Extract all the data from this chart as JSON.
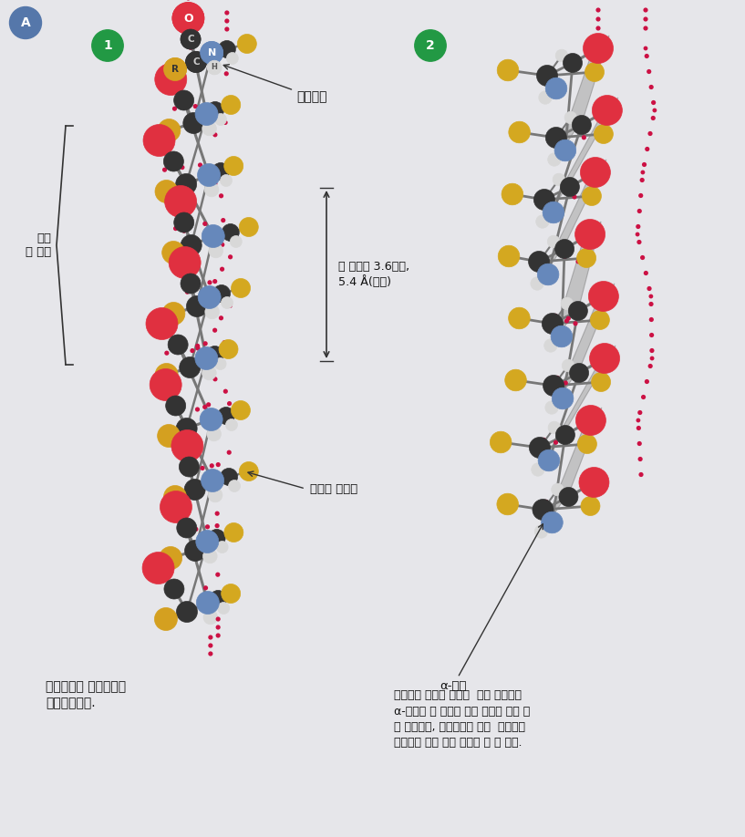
{
  "bg_color": "#e6e6ea",
  "panel1_caption": "수소결합은 나선구조를\n안정화시킨다.",
  "panel2_caption": "펩타이드 평면은 나선과  대략 평행이며\nα-탄소가 이 평면의 경첩 역할을 하고 있\n는 형태인데, 나선구조는 이런  펩타이드\n평면들이 쌓여 있는 배열로 볼 수 있다.",
  "label_H_bond": "수소결합",
  "label_turn": "나선\n한 바퀴",
  "label_pitch": "한 바퀴당 3.6잔기,\n5.4 Å(피치)",
  "label_side_chain": "결사슬 작용기",
  "label_alpha_carbon": "α-탄소",
  "color_O": "#e03040",
  "color_C": "#333333",
  "color_N": "#6688bb",
  "color_H": "#d8d8d8",
  "color_R": "#d4a020",
  "color_yellow": "#d4a820",
  "color_bond": "#777777",
  "color_hbond": "#cc1144",
  "color_plane": "#aaaaaa",
  "color_A_circle": "#5577aa",
  "color_num_circle": "#229944"
}
